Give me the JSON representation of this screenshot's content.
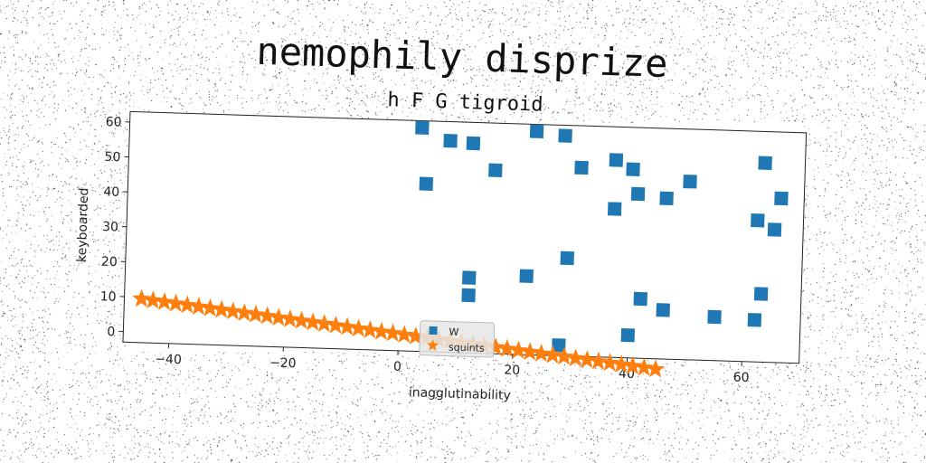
{
  "chart_data": {
    "type": "scatter",
    "title": "nemophily disprize",
    "subtitle": "h F G tigroid",
    "xlabel": "inagglutinability",
    "ylabel": "keyboarded",
    "xlim": [
      -48,
      70
    ],
    "ylim": [
      -3,
      63
    ],
    "xticks": [
      -40,
      -20,
      0,
      20,
      40,
      60
    ],
    "yticks": [
      0,
      10,
      20,
      30,
      40,
      50,
      60
    ],
    "grid": false,
    "legend_position": "bottom-center",
    "series": [
      {
        "name": "W",
        "marker": "square",
        "color": "#1f77b4",
        "points": [
          [
            3,
            61
          ],
          [
            4,
            45
          ],
          [
            8,
            57.5
          ],
          [
            12,
            57
          ],
          [
            16,
            49.5
          ],
          [
            23,
            61
          ],
          [
            28,
            60
          ],
          [
            31,
            51
          ],
          [
            37,
            53.5
          ],
          [
            37,
            39.5
          ],
          [
            40,
            51
          ],
          [
            41,
            44
          ],
          [
            46,
            43
          ],
          [
            50,
            48
          ],
          [
            62,
            37.5
          ],
          [
            63,
            54
          ],
          [
            66,
            44
          ],
          [
            65,
            35
          ],
          [
            12,
            18.5
          ],
          [
            12,
            13.5
          ],
          [
            22,
            19.5
          ],
          [
            29,
            25
          ],
          [
            42,
            14
          ],
          [
            46,
            11
          ],
          [
            55,
            9.5
          ],
          [
            62,
            9
          ],
          [
            63,
            16.5
          ],
          [
            40,
            3.5
          ],
          [
            28,
            0
          ]
        ]
      },
      {
        "name": "squints",
        "marker": "star",
        "color": "#ff7f0e",
        "x_range": [
          -45,
          45
        ],
        "y_range": [
          9.5,
          -6
        ],
        "count": 46
      }
    ]
  }
}
